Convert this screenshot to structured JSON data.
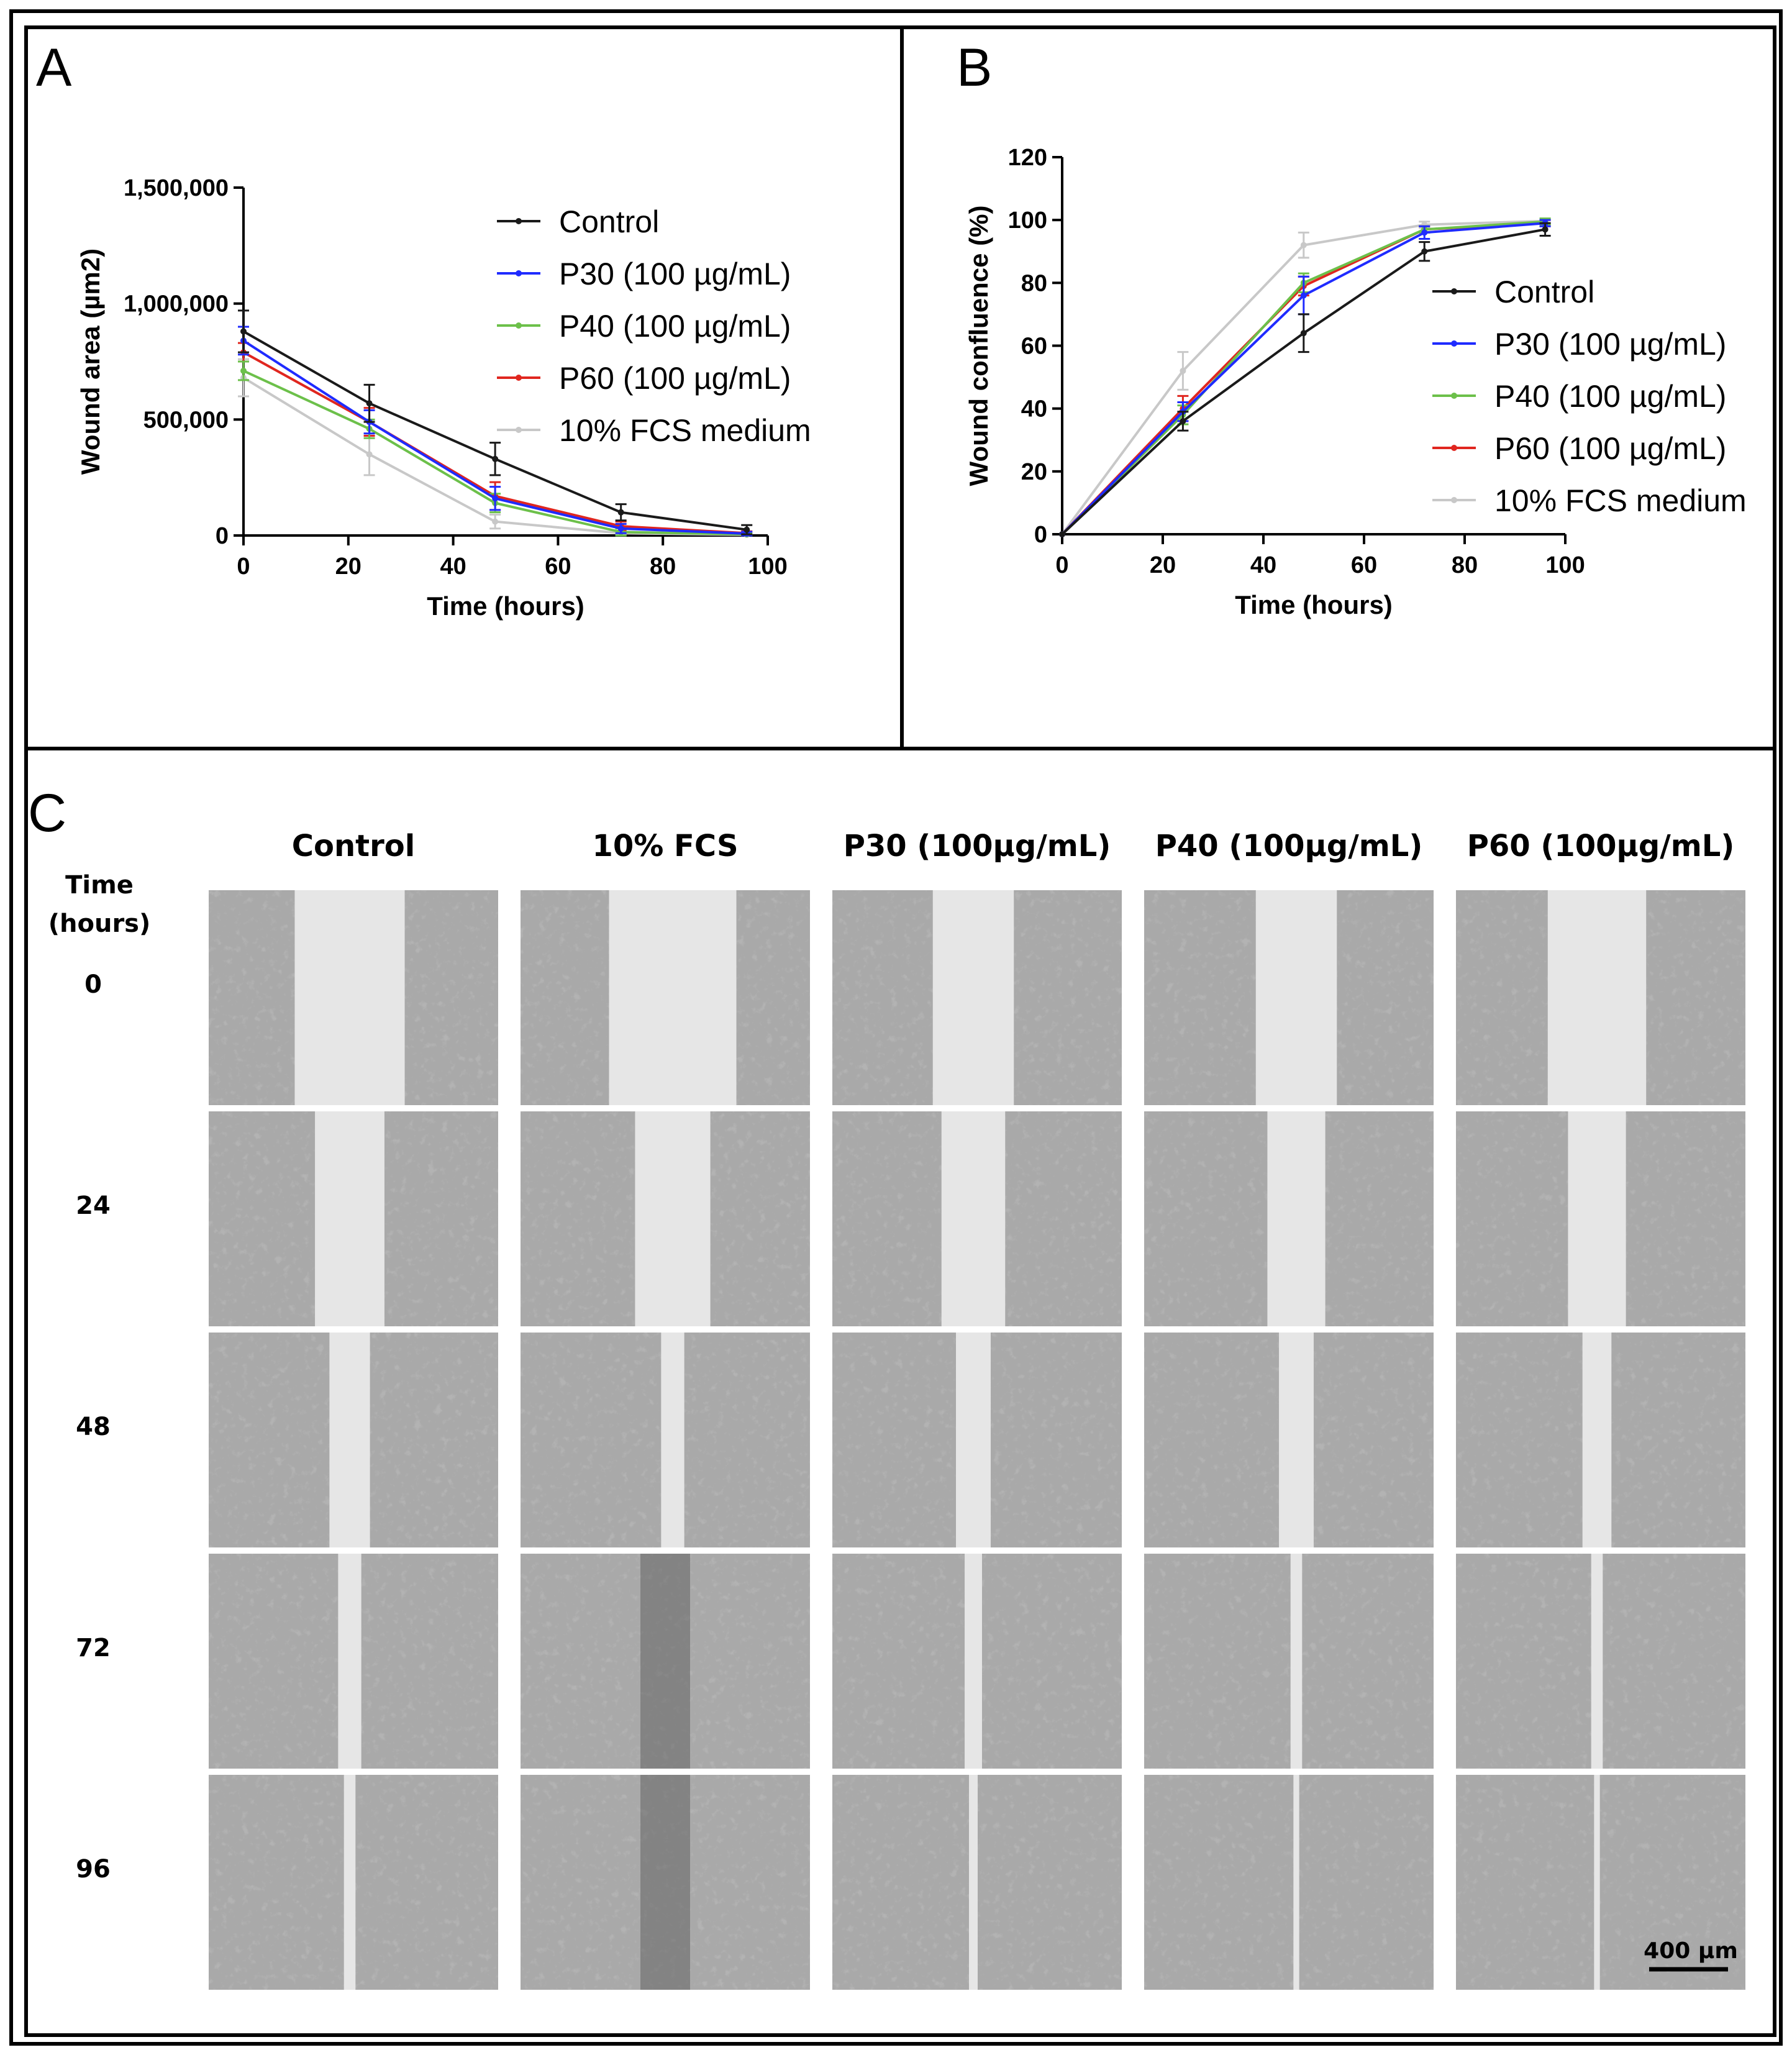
{
  "panels": {
    "a": "A",
    "b": "B",
    "c": "C"
  },
  "colors": {
    "Control": "#1a1a1a",
    "P30": "#1f2bff",
    "P40": "#6cc04a",
    "P60": "#e0261f",
    "FCS": "#c8c8c8"
  },
  "chart_data": [
    {
      "type": "line",
      "panel": "A",
      "title": "",
      "xlabel": "Time (hours)",
      "ylabel": "Wound area (µm2)",
      "xlim": [
        0,
        100
      ],
      "ylim": [
        0,
        1500000
      ],
      "xticks": [
        0,
        20,
        40,
        60,
        80,
        100
      ],
      "yticks": [
        0,
        500000,
        1000000,
        1500000
      ],
      "ytick_labels": [
        "0",
        "500,000",
        "1,000,000",
        "1,500,000"
      ],
      "x": [
        0,
        24,
        48,
        72,
        96
      ],
      "legend_position": "top-right",
      "series": [
        {
          "key": "Control",
          "name": "Control",
          "values": [
            880000,
            570000,
            330000,
            100000,
            25000
          ],
          "errors": [
            90000,
            80000,
            70000,
            35000,
            20000
          ]
        },
        {
          "key": "P30",
          "name": "P30 (100 µg/mL)",
          "values": [
            840000,
            490000,
            160000,
            30000,
            8000
          ],
          "errors": [
            60000,
            50000,
            50000,
            20000,
            8000
          ]
        },
        {
          "key": "P40",
          "name": "P40 (100 µg/mL)",
          "values": [
            710000,
            460000,
            140000,
            15000,
            5000
          ],
          "errors": [
            40000,
            40000,
            40000,
            15000,
            5000
          ]
        },
        {
          "key": "P60",
          "name": "P60 (100 µg/mL)",
          "values": [
            790000,
            490000,
            170000,
            40000,
            10000
          ],
          "errors": [
            40000,
            60000,
            60000,
            20000,
            8000
          ]
        },
        {
          "key": "FCS",
          "name": "10% FCS medium",
          "values": [
            680000,
            350000,
            60000,
            10000,
            3000
          ],
          "errors": [
            80000,
            90000,
            30000,
            8000,
            3000
          ]
        }
      ]
    },
    {
      "type": "line",
      "panel": "B",
      "title": "",
      "xlabel": "Time (hours)",
      "ylabel": "Wound confluence (%)",
      "xlim": [
        0,
        100
      ],
      "ylim": [
        0,
        120
      ],
      "xticks": [
        0,
        20,
        40,
        60,
        80,
        100
      ],
      "yticks": [
        0,
        20,
        40,
        60,
        80,
        100,
        120
      ],
      "ytick_labels": [
        "0",
        "20",
        "40",
        "60",
        "80",
        "100",
        "120"
      ],
      "x": [
        0,
        24,
        48,
        72,
        96
      ],
      "legend_position": "right",
      "series": [
        {
          "key": "Control",
          "name": "Control",
          "values": [
            0,
            36,
            64,
            90,
            97
          ],
          "errors": [
            0,
            3,
            6,
            3,
            2
          ]
        },
        {
          "key": "P30",
          "name": "P30 (100 µg/mL)",
          "values": [
            0,
            39,
            76,
            96,
            99
          ],
          "errors": [
            0,
            3,
            6,
            2,
            1
          ]
        },
        {
          "key": "P40",
          "name": "P40 (100 µg/mL)",
          "values": [
            0,
            38,
            80,
            97,
            99.5
          ],
          "errors": [
            0,
            3,
            3,
            1,
            1
          ]
        },
        {
          "key": "P60",
          "name": "P60 (100 µg/mL)",
          "values": [
            0,
            40,
            79,
            97,
            99
          ],
          "errors": [
            0,
            4,
            3,
            1,
            1
          ]
        },
        {
          "key": "FCS",
          "name": "10% FCS medium",
          "values": [
            0,
            52,
            92,
            98.5,
            99.7
          ],
          "errors": [
            0,
            6,
            4,
            1,
            0.5
          ]
        }
      ]
    }
  ],
  "micrographs": {
    "time_header_line1": "Time",
    "time_header_line2": "(hours)",
    "columns": [
      {
        "label": "Control",
        "key": "Control"
      },
      {
        "label": "10% FCS",
        "key": "FCS"
      },
      {
        "label": "P30 (100µg/mL)",
        "key": "P30"
      },
      {
        "label": "P40 (100µg/mL)",
        "key": "P40"
      },
      {
        "label": "P60 (100µg/mL)",
        "key": "P60"
      }
    ],
    "rows": [
      "0",
      "24",
      "48",
      "72",
      "96"
    ],
    "gap_fraction": {
      "Control": [
        0.38,
        0.24,
        0.14,
        0.08,
        0.04
      ],
      "FCS": [
        0.44,
        0.26,
        0.08,
        0.0,
        0.0
      ],
      "P30": [
        0.28,
        0.22,
        0.12,
        0.06,
        0.03
      ],
      "P40": [
        0.28,
        0.2,
        0.12,
        0.04,
        0.02
      ],
      "P60": [
        0.34,
        0.2,
        0.1,
        0.04,
        0.02
      ]
    },
    "scale_bar_label": "400 µm"
  }
}
